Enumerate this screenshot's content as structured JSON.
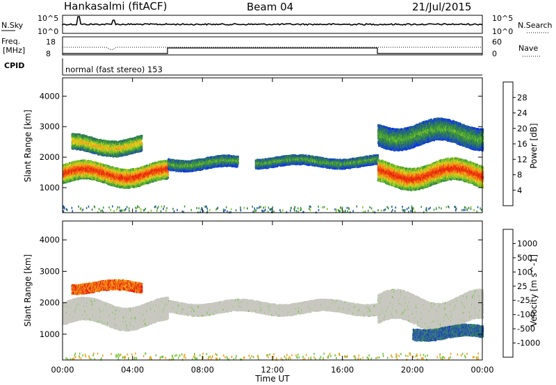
{
  "header": {
    "radar": "Hankasalmi (fitACF)",
    "beam": "Beam 04",
    "date": "21/Jul/2015"
  },
  "top_panels": {
    "nsky_label": "N.Sky",
    "nsky_ticks": [
      "10^5",
      "10^0"
    ],
    "nsearch_label": "N.Search",
    "nsearch_ticks": [
      "10^5",
      "10^0"
    ],
    "freq_label": "Freq.",
    "freq_unit": "[MHz]",
    "freq_ticks": [
      "18",
      "8"
    ],
    "nave_label": "Nave",
    "nave_ticks": [
      "60",
      "0"
    ],
    "cpid_label": "CPID",
    "cpid_text": "normal (fast stereo) 153"
  },
  "chart_data": [
    {
      "type": "heatmap",
      "name": "power-panel",
      "ylabel": "Slant Range [km]",
      "xlabel": "",
      "x_ticks": [
        "00:00",
        "04:00",
        "08:00",
        "12:00",
        "16:00",
        "20:00",
        "00:00"
      ],
      "x_range_hours": [
        0,
        24
      ],
      "y_ticks": [
        1000,
        2000,
        3000,
        4000
      ],
      "ylim": [
        180,
        4600
      ],
      "colorbar": {
        "label": "Power [dB]",
        "ticks": [
          4,
          8,
          12,
          16,
          20,
          24,
          28
        ],
        "range": [
          0,
          32
        ],
        "colors": [
          "#0a32e6",
          "#1f55b0",
          "#2f7a52",
          "#3e9a3c",
          "#7fc52a",
          "#d8d21c",
          "#f2a11a",
          "#f06a12",
          "#ea2a0e"
        ]
      },
      "scatter_bands": [
        {
          "t_start": 0.0,
          "t_end": 6.0,
          "range_center": 1500,
          "range_width": 600,
          "level": "high"
        },
        {
          "t_start": 0.5,
          "t_end": 4.5,
          "range_center": 2450,
          "range_width": 500,
          "level": "medium"
        },
        {
          "t_start": 6.0,
          "t_end": 10.0,
          "range_center": 1850,
          "range_width": 350,
          "level": "low"
        },
        {
          "t_start": 11.0,
          "t_end": 18.0,
          "range_center": 1900,
          "range_width": 300,
          "level": "low"
        },
        {
          "t_start": 18.0,
          "t_end": 24.0,
          "range_center": 1500,
          "range_width": 700,
          "level": "high"
        },
        {
          "t_start": 18.0,
          "t_end": 24.0,
          "range_center": 2800,
          "range_width": 700,
          "level": "low"
        }
      ]
    },
    {
      "type": "heatmap",
      "name": "velocity-panel",
      "ylabel": "Slant Range [km]",
      "xlabel": "Time UT",
      "x_ticks": [
        "00:00",
        "04:00",
        "08:00",
        "12:00",
        "16:00",
        "20:00",
        "00:00"
      ],
      "x_range_hours": [
        0,
        24
      ],
      "y_ticks": [
        1000,
        2000,
        3000,
        4000
      ],
      "ylim": [
        180,
        4600
      ],
      "colorbar": {
        "label": "Velocity [m s^-1]",
        "ticks": [
          1000,
          500,
          100,
          25,
          -25,
          -100,
          -500,
          -1000
        ],
        "colors": [
          "#1f3fb0",
          "#3f6ea8",
          "#2f8a52",
          "#6ec43a",
          "#c8c8c0",
          "#c8c8c0",
          "#f2a11a",
          "#f06a12",
          "#e61c10"
        ]
      },
      "scatter_bands": [
        {
          "t_start": 0.0,
          "t_end": 6.0,
          "range_center": 1700,
          "range_width": 700,
          "level": "ground"
        },
        {
          "t_start": 6.0,
          "t_end": 18.0,
          "range_center": 1900,
          "range_width": 350,
          "level": "ground"
        },
        {
          "t_start": 18.0,
          "t_end": 24.0,
          "range_center": 1800,
          "range_width": 900,
          "level": "ground"
        },
        {
          "t_start": 20.0,
          "t_end": 24.0,
          "range_center": 1100,
          "range_width": 350,
          "level": "positive"
        },
        {
          "t_start": 0.5,
          "t_end": 4.5,
          "range_center": 2550,
          "range_width": 300,
          "level": "negative"
        }
      ]
    }
  ]
}
